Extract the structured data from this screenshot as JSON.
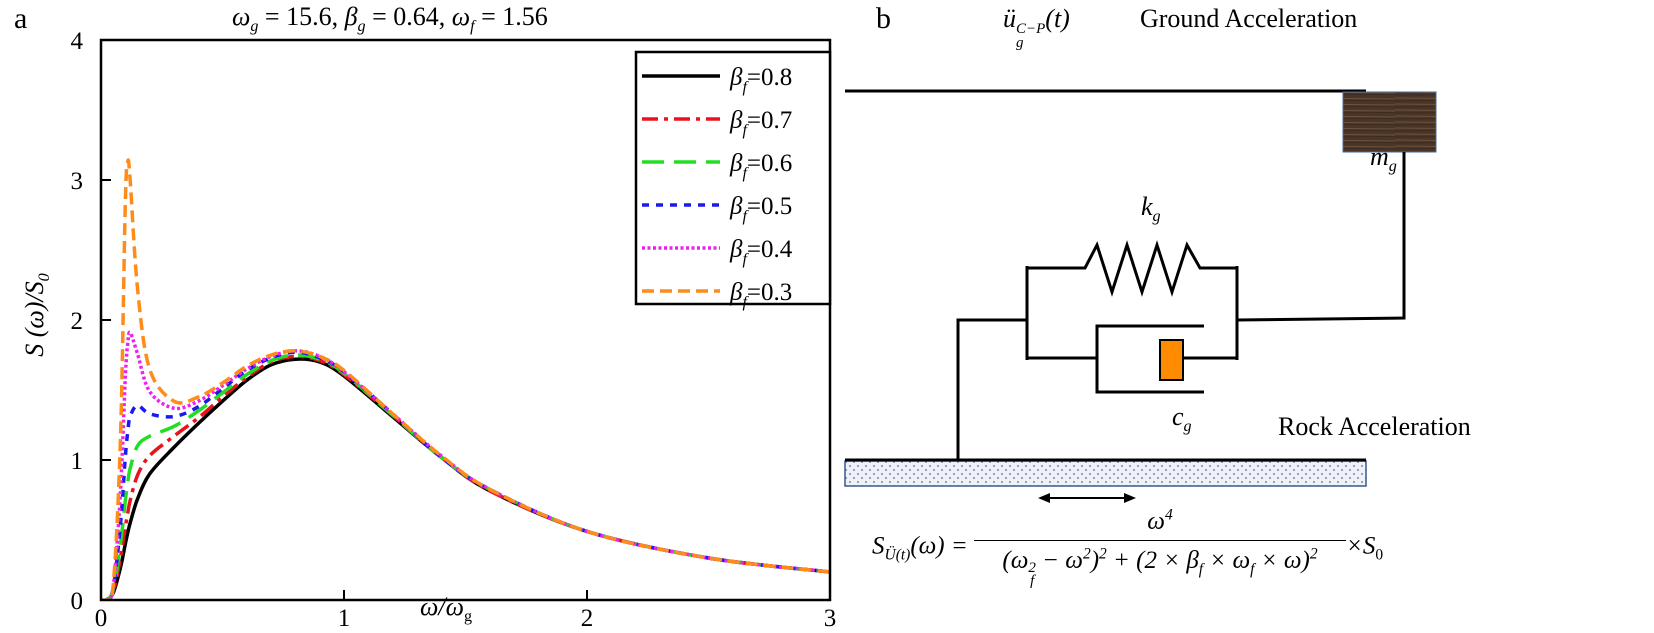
{
  "panel_a": {
    "label": "a",
    "title_params": [
      {
        "sym": "ω",
        "sub": "g",
        "val": " = 15.6, "
      },
      {
        "sym": "β",
        "sub": "g",
        "val": " = 0.64, "
      },
      {
        "sym": "ω",
        "sub": "f",
        "val": " = 1.56"
      }
    ]
  },
  "panel_b": {
    "label": "b",
    "ground_symbol": {
      "base": "ü",
      "sub": "g",
      "sup": "C−P",
      "arg": "(t)"
    },
    "ground_label": "Ground Acceleration",
    "rock_label": "Rock Acceleration",
    "spring": {
      "sym": "k",
      "sub": "g"
    },
    "damper": {
      "sym": "c",
      "sub": "g"
    },
    "mass": {
      "sym": "m",
      "sub": "g"
    },
    "colors": {
      "mass": "#4a3526",
      "piston": "#ff8c00",
      "base_border": "#3b5a8c",
      "base_dots": "#7a8aa6"
    },
    "formula": {
      "lhs": "S",
      "lhs_sub": "Ü(t)",
      "lhs_arg": "(ω) =",
      "num": "ω",
      "num_sup": "4",
      "den": [
        {
          "t": "(ω"
        },
        {
          "sub": "f",
          "sup": "2"
        },
        {
          "t": " − ω"
        },
        {
          "sup": "2"
        },
        {
          "t": ")"
        },
        {
          "sup": "2"
        },
        {
          "t": " + (2 × β"
        },
        {
          "sub": "f"
        },
        {
          "t": " × ω"
        },
        {
          "sub": "f"
        },
        {
          "t": " × ω)"
        },
        {
          "sup": "2"
        }
      ],
      "tail": "×S",
      "tail_sub": "0"
    }
  },
  "chart_data": {
    "type": "line",
    "title": "ωg = 15.6, βg = 0.64, ωf = 1.56",
    "xlabel": {
      "base": "ω/ω",
      "sub": "g"
    },
    "ylabel": {
      "base": "S (ω)/S",
      "sub": "0"
    },
    "xlim": [
      0,
      3
    ],
    "ylim": [
      0,
      4
    ],
    "xticks": [
      "0",
      "1",
      "2",
      "3"
    ],
    "yticks": [
      "0",
      "1",
      "2",
      "3",
      "4"
    ],
    "grid": false,
    "legend_placement": "top-right",
    "x": [
      0,
      0.02,
      0.05,
      0.08,
      0.1,
      0.11,
      0.12,
      0.15,
      0.2,
      0.3,
      0.4,
      0.5,
      0.6,
      0.7,
      0.8,
      0.9,
      1.0,
      1.2,
      1.4,
      1.6,
      2.0,
      2.5,
      3.0
    ],
    "series": [
      {
        "name": "βf=0.8",
        "sym": "β",
        "sub": "f",
        "val": "=0.8",
        "color": "#000000",
        "style": "solid",
        "values": [
          0,
          0,
          0.05,
          0.23,
          0.4,
          0.48,
          0.55,
          0.72,
          0.9,
          1.09,
          1.26,
          1.42,
          1.57,
          1.68,
          1.72,
          1.7,
          1.6,
          1.31,
          1.02,
          0.78,
          0.49,
          0.3,
          0.2
        ]
      },
      {
        "name": "βf=0.7",
        "sym": "β",
        "sub": "f",
        "val": "=0.7",
        "color": "#e8141c",
        "style": "dash-dot",
        "values": [
          0,
          0,
          0.06,
          0.3,
          0.52,
          0.62,
          0.71,
          0.89,
          1.03,
          1.17,
          1.3,
          1.45,
          1.59,
          1.7,
          1.74,
          1.71,
          1.61,
          1.32,
          1.02,
          0.78,
          0.49,
          0.3,
          0.2
        ]
      },
      {
        "name": "βf=0.6",
        "sym": "β",
        "sub": "f",
        "val": "=0.6",
        "color": "#22dd22",
        "style": "long-dash",
        "values": [
          0,
          0,
          0.07,
          0.4,
          0.71,
          0.84,
          0.94,
          1.1,
          1.17,
          1.24,
          1.35,
          1.48,
          1.61,
          1.71,
          1.75,
          1.72,
          1.62,
          1.32,
          1.02,
          0.79,
          0.49,
          0.3,
          0.2
        ]
      },
      {
        "name": "βf=0.5",
        "sym": "β",
        "sub": "f",
        "val": "=0.5",
        "color": "#1a1aee",
        "style": "short-dash",
        "values": [
          0,
          0,
          0.08,
          0.54,
          1.02,
          1.2,
          1.31,
          1.39,
          1.33,
          1.31,
          1.38,
          1.51,
          1.64,
          1.73,
          1.77,
          1.73,
          1.63,
          1.33,
          1.02,
          0.79,
          0.49,
          0.3,
          0.2
        ]
      },
      {
        "name": "βf=0.4",
        "sym": "β",
        "sub": "f",
        "val": "=0.4",
        "color": "#ee22ee",
        "style": "dotted",
        "values": [
          0,
          0,
          0.09,
          0.77,
          1.59,
          1.83,
          1.91,
          1.76,
          1.49,
          1.37,
          1.42,
          1.53,
          1.65,
          1.74,
          1.78,
          1.74,
          1.63,
          1.33,
          1.03,
          0.79,
          0.49,
          0.3,
          0.2
        ]
      },
      {
        "name": "βf=0.3",
        "sym": "β",
        "sub": "f",
        "val": "=0.3",
        "color": "#ff8c1a",
        "style": "dashed",
        "values": [
          0,
          0,
          0.1,
          1.15,
          2.83,
          3.13,
          3.0,
          2.23,
          1.65,
          1.42,
          1.45,
          1.55,
          1.67,
          1.75,
          1.78,
          1.74,
          1.64,
          1.33,
          1.03,
          0.79,
          0.49,
          0.3,
          0.2
        ]
      }
    ]
  }
}
